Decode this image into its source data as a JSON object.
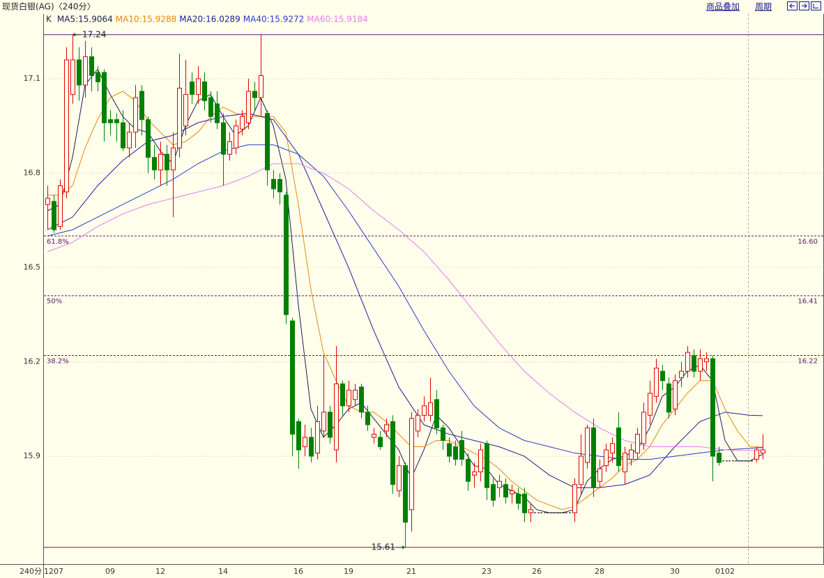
{
  "chart_data": {
    "type": "candlestick",
    "title": "现货白银(AG)〈240分〉",
    "links": [
      "商品叠加",
      "周期"
    ],
    "legend_label": "K",
    "x_unit_label": "240分",
    "categories": [
      null,
      "1207",
      null,
      null,
      null,
      null,
      null,
      null,
      null,
      null,
      "09",
      null,
      null,
      null,
      null,
      null,
      null,
      null,
      "12",
      null,
      null,
      null,
      null,
      null,
      null,
      null,
      null,
      null,
      "14",
      null,
      null,
      null,
      null,
      null,
      null,
      null,
      null,
      null,
      null,
      null,
      "16",
      null,
      null,
      null,
      null,
      null,
      null,
      null,
      "19",
      null,
      null,
      null,
      null,
      null,
      null,
      null,
      null,
      null,
      "21",
      null,
      null,
      null,
      null,
      null,
      null,
      null,
      null,
      null,
      null,
      null,
      "23",
      null,
      null,
      null,
      null,
      null,
      null,
      null,
      "26",
      null,
      null,
      null,
      null,
      null,
      null,
      null,
      null,
      null,
      "28",
      null,
      null,
      null,
      null,
      null,
      null,
      null,
      null,
      null,
      null,
      null,
      "30",
      null,
      null,
      null,
      null,
      null,
      null,
      null,
      "0102",
      null,
      null,
      null,
      null,
      null,
      null
    ],
    "open": [
      16.7,
      16.71,
      16.63,
      16.74,
      17.05,
      17.16,
      17.08,
      17.17,
      17.12,
      17.12,
      16.97,
      16.97,
      16.96,
      16.88,
      16.93,
      17.06,
      16.97,
      16.85,
      16.81,
      16.86,
      16.81,
      16.88,
      16.95,
      17.09,
      17.05,
      17.09,
      17.04,
      17.02,
      16.96,
      16.86,
      16.88,
      16.94,
      16.96,
      17.06,
      17.04,
      16.99,
      16.78,
      16.78,
      16.73,
      16.33,
      16.01,
      15.93,
      15.96,
      15.91,
      15.98,
      16.04,
      15.92,
      16.13,
      16.06,
      16.08,
      16.12,
      16.04,
      15.96,
      15.96,
      15.98,
      16.01,
      15.79,
      15.87,
      15.73,
      15.98,
      16.03,
      16.03,
      16.08,
      15.99,
      15.94,
      15.93,
      15.95,
      15.89,
      15.84,
      15.85,
      15.94,
      15.81,
      15.8,
      15.81,
      15.78,
      15.78,
      15.78,
      15.72,
      15.72,
      15.72,
      15.72,
      15.72,
      15.72,
      15.72,
      15.72,
      15.81,
      15.88,
      15.99,
      15.82,
      15.87,
      15.91,
      15.99,
      15.85,
      15.89,
      15.91,
      15.94,
      16.03,
      16.09,
      16.17,
      16.13,
      16.05,
      16.15,
      16.17,
      16.22,
      16.17,
      16.2,
      16.21,
      15.91,
      15.885,
      15.885,
      15.885,
      15.885,
      15.885,
      15.89,
      15.91
    ],
    "high": [
      16.76,
      16.73,
      16.78,
      17.2,
      17.24,
      17.2,
      17.22,
      17.2,
      17.14,
      17.13,
      17.0,
      16.99,
      17.0,
      16.96,
      17.08,
      17.08,
      16.98,
      16.89,
      16.9,
      16.89,
      16.93,
      17.18,
      17.16,
      17.12,
      17.14,
      17.12,
      17.06,
      17.06,
      16.99,
      16.93,
      16.97,
      17.0,
      17.1,
      17.09,
      17.24,
      17.0,
      16.81,
      16.8,
      16.74,
      16.34,
      16.02,
      16.0,
      15.99,
      16.06,
      16.22,
      16.06,
      16.25,
      16.14,
      16.14,
      16.13,
      16.13,
      16.06,
      15.99,
      15.98,
      16.02,
      16.03,
      15.9,
      15.88,
      16.04,
      16.05,
      16.09,
      16.15,
      16.11,
      16.0,
      15.96,
      15.95,
      15.98,
      15.91,
      15.88,
      15.94,
      15.95,
      15.83,
      15.84,
      15.83,
      15.81,
      15.8,
      15.8,
      15.75,
      15.72,
      15.72,
      15.72,
      15.72,
      15.72,
      15.72,
      15.83,
      15.97,
      16.0,
      16.02,
      15.89,
      15.94,
      15.96,
      16.04,
      15.93,
      15.94,
      15.99,
      16.07,
      16.14,
      16.21,
      16.19,
      16.15,
      16.16,
      16.2,
      16.25,
      16.24,
      16.24,
      16.23,
      16.22,
      15.93,
      15.885,
      15.885,
      15.885,
      15.885,
      15.885,
      15.93,
      15.97
    ],
    "low": [
      16.62,
      16.61,
      16.62,
      16.72,
      17.02,
      17.03,
      17.04,
      17.06,
      17.06,
      16.9,
      16.92,
      16.9,
      16.87,
      16.85,
      16.88,
      16.92,
      16.8,
      16.78,
      16.76,
      16.76,
      16.66,
      16.85,
      16.92,
      17.02,
      17.02,
      17.0,
      16.96,
      16.94,
      16.76,
      16.84,
      16.86,
      16.92,
      16.94,
      17.0,
      16.98,
      16.76,
      16.72,
      16.7,
      16.32,
      15.9,
      15.86,
      15.9,
      15.88,
      15.89,
      15.96,
      15.94,
      15.88,
      16.03,
      16.04,
      16.06,
      16.02,
      15.98,
      15.94,
      15.92,
      15.96,
      15.78,
      15.77,
      15.61,
      15.66,
      15.96,
      16.01,
      16.01,
      15.97,
      15.92,
      15.88,
      15.87,
      15.87,
      15.79,
      15.8,
      15.82,
      15.76,
      15.74,
      15.77,
      15.75,
      15.75,
      15.73,
      15.69,
      15.69,
      15.72,
      15.72,
      15.72,
      15.72,
      15.72,
      15.72,
      15.69,
      15.78,
      15.86,
      15.77,
      15.8,
      15.85,
      15.88,
      15.85,
      15.81,
      15.87,
      15.89,
      15.92,
      16.0,
      16.07,
      16.11,
      16.02,
      16.03,
      16.12,
      16.15,
      16.15,
      16.14,
      16.17,
      15.82,
      15.87,
      15.885,
      15.885,
      15.885,
      15.885,
      15.885,
      15.88,
      15.89
    ],
    "close": [
      16.72,
      16.62,
      16.76,
      17.16,
      17.16,
      17.08,
      17.17,
      17.11,
      17.09,
      16.96,
      16.96,
      16.96,
      16.88,
      16.93,
      17.04,
      16.97,
      16.85,
      16.81,
      16.86,
      16.81,
      16.88,
      17.07,
      17.05,
      17.05,
      17.1,
      17.03,
      16.98,
      16.96,
      16.86,
      16.9,
      16.95,
      16.98,
      17.06,
      17.04,
      17.11,
      16.81,
      16.75,
      16.74,
      16.35,
      15.97,
      15.92,
      15.96,
      15.9,
      16.01,
      16.04,
      15.96,
      16.13,
      16.06,
      16.11,
      16.11,
      16.04,
      16.0,
      15.97,
      15.93,
      16.0,
      15.81,
      15.87,
      15.69,
      16.02,
      16.03,
      16.06,
      16.07,
      15.99,
      15.95,
      15.9,
      15.89,
      15.89,
      15.82,
      15.85,
      15.92,
      15.8,
      15.76,
      15.82,
      15.77,
      15.79,
      15.75,
      15.72,
      15.73,
      15.72,
      15.72,
      15.72,
      15.72,
      15.72,
      15.72,
      15.81,
      15.9,
      15.99,
      15.8,
      15.86,
      15.92,
      15.94,
      15.87,
      15.91,
      15.92,
      15.97,
      16.04,
      16.1,
      16.18,
      16.14,
      16.04,
      16.14,
      16.17,
      16.23,
      16.17,
      16.21,
      16.21,
      15.9,
      15.88,
      15.885,
      15.885,
      15.885,
      15.885,
      15.885,
      15.92,
      15.92
    ],
    "up_color": "#e00000",
    "down_color": "#008000",
    "flat_color": "#000000",
    "ylim": [
      15.557,
      17.306
    ],
    "yticks": [
      15.9,
      16.2,
      16.5,
      16.8,
      17.1
    ],
    "grid": true,
    "series": [
      {
        "name": "MA5:15.9064",
        "color": "#1c1c50",
        "x": [
          0,
          2,
          4,
          6,
          8,
          10,
          12,
          14,
          16,
          18,
          20,
          22,
          24,
          26,
          28,
          30,
          32,
          34,
          36,
          38,
          40,
          42,
          44,
          46,
          48,
          50,
          52,
          54,
          56,
          58,
          60,
          62,
          64,
          66,
          68,
          70,
          72,
          74,
          76,
          78,
          80,
          82,
          84,
          86,
          88,
          90,
          92,
          94,
          96,
          98,
          100,
          102,
          104,
          106,
          108,
          110,
          112,
          114
        ],
        "values": [
          16.68,
          16.7,
          16.85,
          17.08,
          17.13,
          17.05,
          16.98,
          16.94,
          16.93,
          16.87,
          16.83,
          16.95,
          17.03,
          17.05,
          16.98,
          16.92,
          16.95,
          17.04,
          16.95,
          16.78,
          16.38,
          16.05,
          15.96,
          16.0,
          16.05,
          16.07,
          16.02,
          15.97,
          15.92,
          15.83,
          15.92,
          16.03,
          15.99,
          15.93,
          15.87,
          15.86,
          15.81,
          15.79,
          15.77,
          15.73,
          15.72,
          15.72,
          15.73,
          15.82,
          15.86,
          15.89,
          15.9,
          15.92,
          15.99,
          16.09,
          16.12,
          16.17,
          16.19,
          16.14,
          15.95,
          15.885,
          15.885,
          15.9064
        ]
      },
      {
        "name": "MA10:15.9288",
        "color": "#e8860c",
        "x": [
          0,
          2,
          4,
          6,
          8,
          10,
          12,
          14,
          16,
          18,
          20,
          22,
          24,
          26,
          28,
          30,
          32,
          34,
          36,
          38,
          40,
          42,
          44,
          46,
          48,
          50,
          52,
          54,
          56,
          58,
          60,
          62,
          64,
          66,
          68,
          70,
          72,
          74,
          76,
          78,
          80,
          82,
          84,
          86,
          88,
          90,
          92,
          94,
          96,
          98,
          100,
          102,
          104,
          106,
          108,
          110,
          112,
          114
        ],
        "values": [
          16.73,
          16.73,
          16.76,
          16.88,
          16.97,
          17.04,
          17.06,
          17.03,
          16.97,
          16.93,
          16.89,
          16.9,
          16.93,
          16.98,
          17.01,
          16.99,
          16.98,
          16.98,
          16.98,
          16.93,
          16.7,
          16.43,
          16.23,
          16.14,
          16.06,
          16.04,
          16.04,
          16.01,
          15.97,
          15.93,
          15.93,
          15.95,
          15.95,
          15.93,
          15.91,
          15.89,
          15.86,
          15.82,
          15.79,
          15.76,
          15.745,
          15.73,
          15.74,
          15.77,
          15.8,
          15.83,
          15.87,
          15.89,
          15.93,
          16.0,
          16.05,
          16.1,
          16.14,
          16.14,
          16.05,
          15.98,
          15.93,
          15.9288
        ]
      },
      {
        "name": "MA20:16.0289",
        "color": "#1e1e96",
        "x": [
          0,
          4,
          8,
          12,
          16,
          20,
          24,
          28,
          32,
          36,
          40,
          44,
          48,
          52,
          56,
          60,
          64,
          68,
          72,
          76,
          80,
          84,
          88,
          92,
          96,
          100,
          104,
          108,
          112,
          114
        ],
        "values": [
          16.62,
          16.66,
          16.76,
          16.84,
          16.9,
          16.92,
          16.96,
          16.98,
          16.99,
          16.97,
          16.86,
          16.68,
          16.5,
          16.3,
          16.12,
          16.0,
          15.97,
          15.95,
          15.93,
          15.9,
          15.84,
          15.8,
          15.8,
          15.81,
          15.84,
          15.93,
          16.01,
          16.04,
          16.03,
          16.0289
        ]
      },
      {
        "name": "MA40:15.9272",
        "color": "#2a3ac8",
        "x": [
          0,
          4,
          8,
          12,
          16,
          20,
          24,
          28,
          32,
          36,
          40,
          44,
          48,
          52,
          56,
          60,
          64,
          68,
          72,
          76,
          80,
          84,
          88,
          92,
          96,
          100,
          104,
          108,
          112,
          114
        ],
        "values": [
          16.6,
          16.62,
          16.66,
          16.7,
          16.74,
          16.78,
          16.83,
          16.87,
          16.89,
          16.89,
          16.86,
          16.79,
          16.68,
          16.56,
          16.44,
          16.3,
          16.17,
          16.06,
          15.99,
          15.95,
          15.93,
          15.91,
          15.9,
          15.89,
          15.89,
          15.9,
          15.91,
          15.92,
          15.925,
          15.9272
        ]
      },
      {
        "name": "MA60:15.9184",
        "color": "#e27ee8",
        "x": [
          0,
          4,
          8,
          12,
          16,
          20,
          24,
          28,
          32,
          36,
          40,
          44,
          48,
          52,
          56,
          60,
          64,
          68,
          72,
          76,
          80,
          84,
          88,
          92,
          96,
          100,
          104,
          108,
          112,
          114
        ],
        "values": [
          16.55,
          16.58,
          16.63,
          16.67,
          16.7,
          16.72,
          16.74,
          16.76,
          16.79,
          16.83,
          16.83,
          16.8,
          16.75,
          16.68,
          16.62,
          16.55,
          16.46,
          16.36,
          16.26,
          16.17,
          16.1,
          16.04,
          15.99,
          15.95,
          15.93,
          15.93,
          15.93,
          15.92,
          15.918,
          15.9184
        ]
      }
    ],
    "level_color": "#5a1a6a",
    "levels": [
      {
        "name": "61.8%",
        "value": 16.6,
        "label": "16.60"
      },
      {
        "name": "50%",
        "value": 16.41,
        "label": "16.41"
      },
      {
        "name": "38.2%",
        "value": 16.22,
        "label": "16.22"
      }
    ],
    "extremes": [
      {
        "value": 17.24,
        "index": 4
      },
      {
        "value": 15.61,
        "index": 57
      }
    ]
  }
}
